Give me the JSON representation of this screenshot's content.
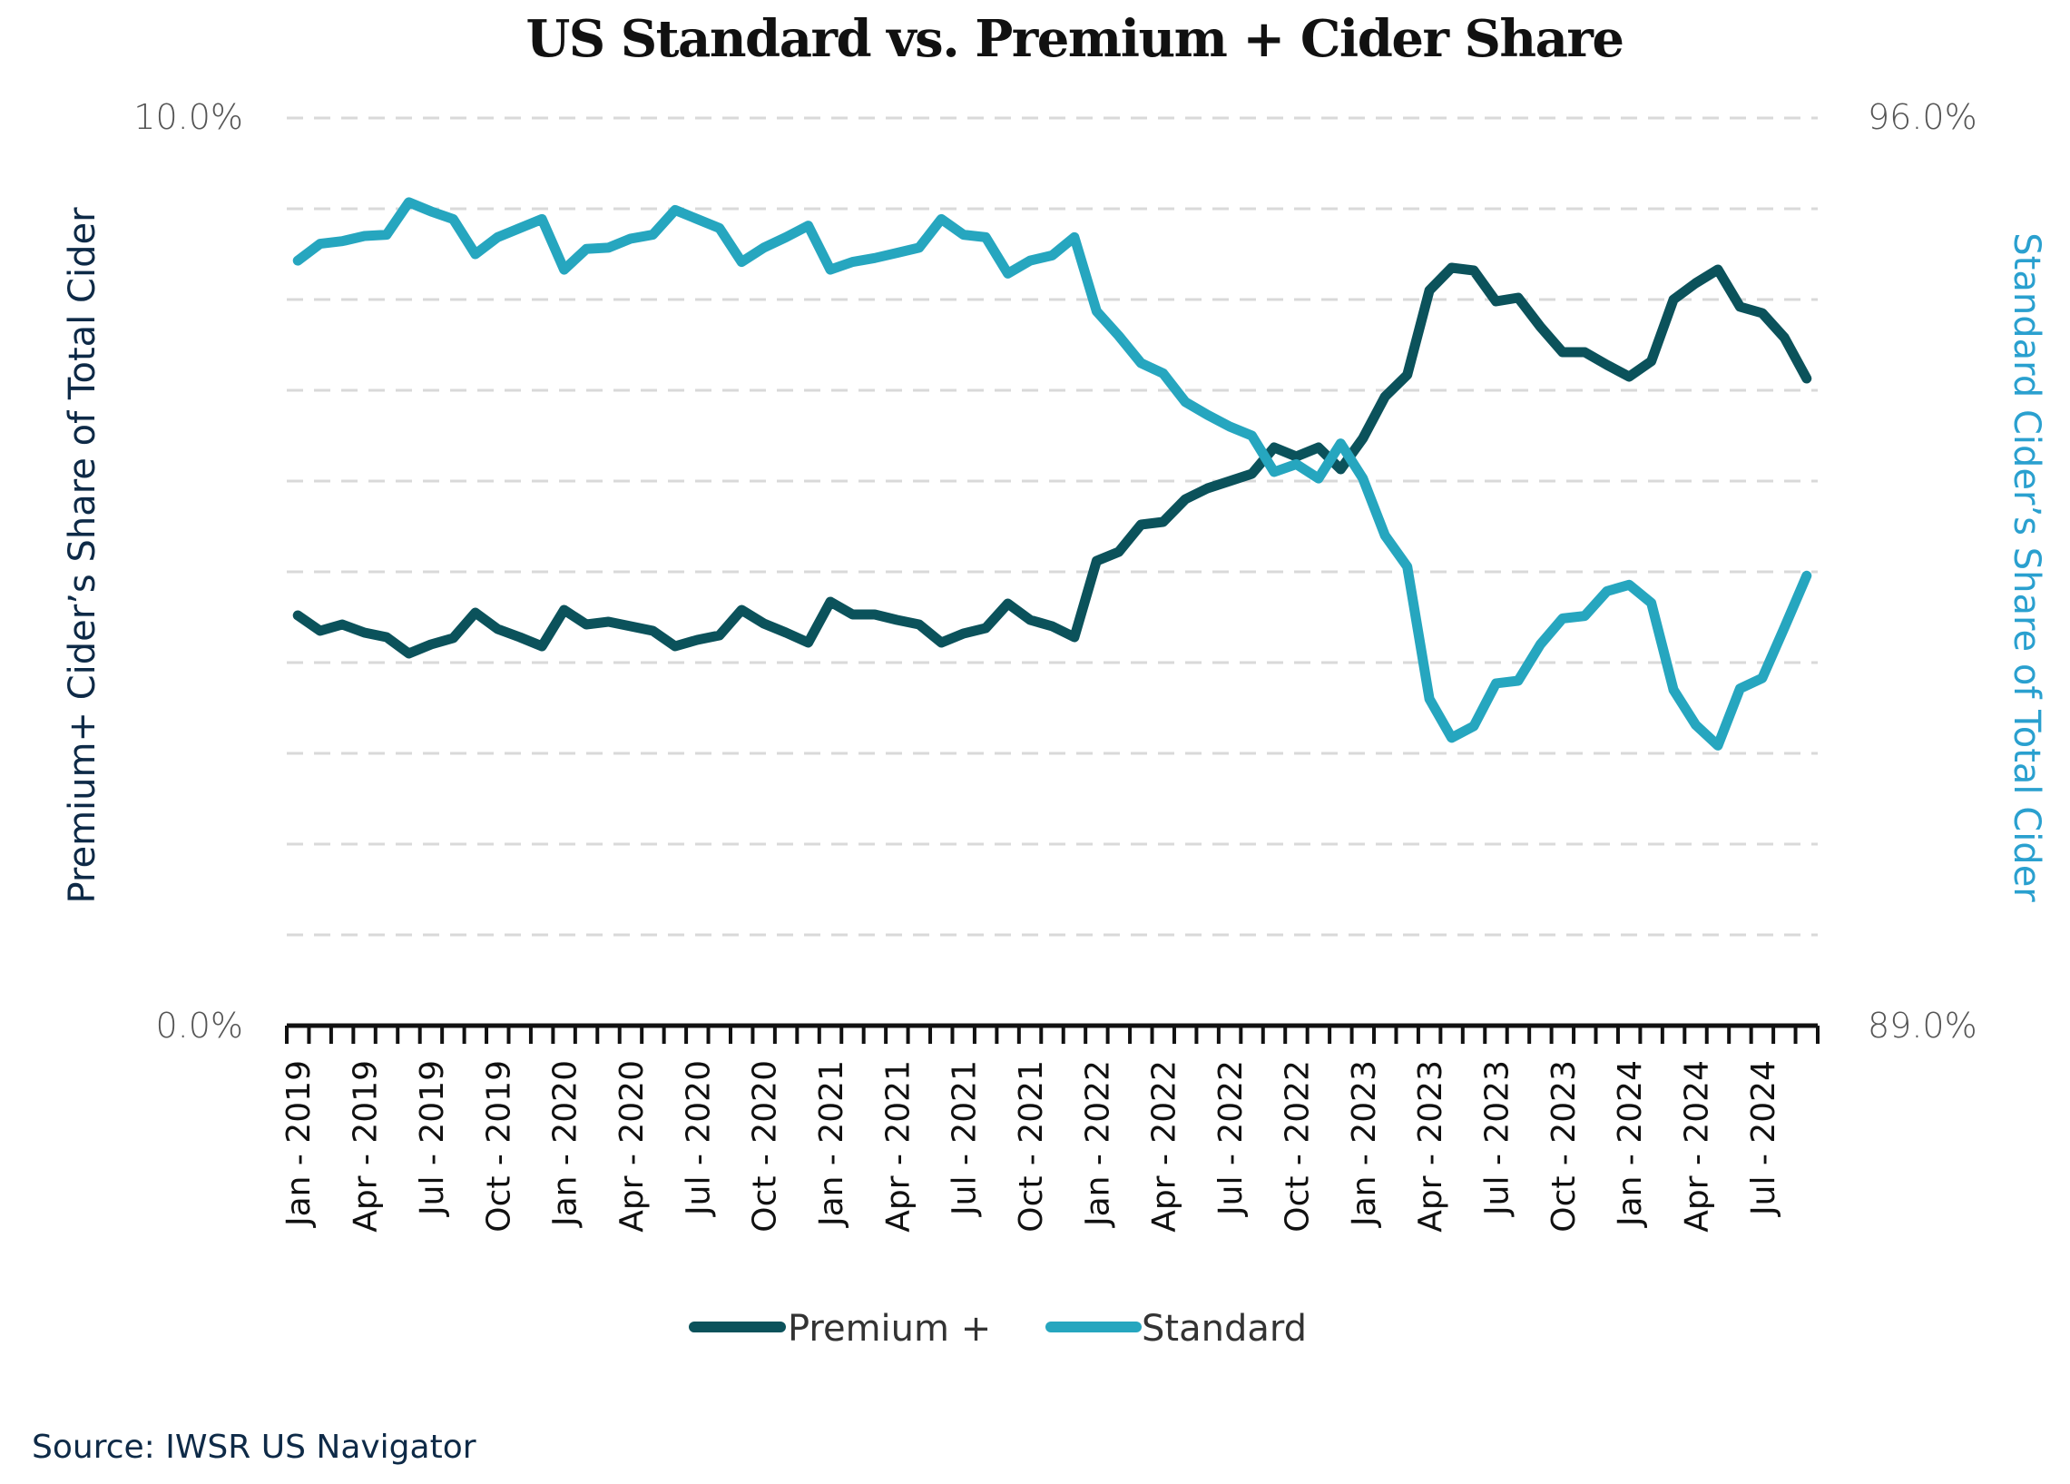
{
  "chart_data": {
    "type": "line",
    "title": "US Standard vs. Premium + Cider Share",
    "xlabel": "",
    "ylabel_left": "Premium+ Cider’s Share of Total Cider",
    "ylabel_right": "Standard Cider’s Share of Total Cider",
    "ylim_left": [
      0,
      10
    ],
    "ylim_right": [
      89,
      96
    ],
    "y_ticks_left": [
      "10.0%",
      "0.0%"
    ],
    "y_ticks_right": [
      "96.0%",
      "89.0%"
    ],
    "gridlines": 10,
    "grid": true,
    "legend_position": "bottom",
    "x": [
      "Jan - 2019",
      "Feb - 2019",
      "Mar - 2019",
      "Apr - 2019",
      "May - 2019",
      "Jun - 2019",
      "Jul - 2019",
      "Aug - 2019",
      "Sep - 2019",
      "Oct - 2019",
      "Nov - 2019",
      "Dec - 2019",
      "Jan - 2020",
      "Feb - 2020",
      "Mar - 2020",
      "Apr - 2020",
      "May - 2020",
      "Jun - 2020",
      "Jul - 2020",
      "Aug - 2020",
      "Sep - 2020",
      "Oct - 2020",
      "Nov - 2020",
      "Dec - 2020",
      "Jan - 2021",
      "Feb - 2021",
      "Mar - 2021",
      "Apr - 2021",
      "May - 2021",
      "Jun - 2021",
      "Jul - 2021",
      "Aug - 2021",
      "Sep - 2021",
      "Oct - 2021",
      "Nov - 2021",
      "Dec - 2021",
      "Jan - 2022",
      "Feb - 2022",
      "Mar - 2022",
      "Apr - 2022",
      "May - 2022",
      "Jun - 2022",
      "Jul - 2022",
      "Aug - 2022",
      "Sep - 2022",
      "Oct - 2022",
      "Nov - 2022",
      "Dec - 2022",
      "Jan - 2023",
      "Feb - 2023",
      "Mar - 2023",
      "Apr - 2023",
      "May - 2023",
      "Jun - 2023",
      "Jul - 2023",
      "Aug - 2023",
      "Sep - 2023",
      "Oct - 2023",
      "Nov - 2023",
      "Dec - 2023",
      "Jan - 2024",
      "Feb - 2024",
      "Mar - 2024",
      "Apr - 2024",
      "May - 2024",
      "Jun - 2024",
      "Jul - 2024",
      "Aug - 2024",
      "Sep - 2024"
    ],
    "x_tick_labels": [
      "Jan - 2019",
      "Apr - 2019",
      "Jul - 2019",
      "Oct - 2019",
      "Jan - 2020",
      "Apr - 2020",
      "Jul - 2020",
      "Oct - 2020",
      "Jan - 2021",
      "Apr - 2021",
      "Jul - 2021",
      "Oct - 2021",
      "Jan - 2022",
      "Apr - 2022",
      "Jul - 2022",
      "Oct - 2022",
      "Jan - 2023",
      "Apr - 2023",
      "Jul - 2023",
      "Oct - 2023",
      "Jan - 2024",
      "Apr - 2024",
      "Jul - 2024"
    ],
    "series": [
      {
        "name": "Premium +",
        "axis": "left",
        "color": "#0b525b",
        "values": [
          4.52,
          4.35,
          4.42,
          4.33,
          4.28,
          4.1,
          4.2,
          4.27,
          4.55,
          4.37,
          4.28,
          4.18,
          4.58,
          4.42,
          4.45,
          4.4,
          4.35,
          4.18,
          4.25,
          4.3,
          4.58,
          4.43,
          4.33,
          4.22,
          4.67,
          4.53,
          4.53,
          4.47,
          4.42,
          4.22,
          4.32,
          4.38,
          4.65,
          4.47,
          4.4,
          4.28,
          5.12,
          5.22,
          5.52,
          5.55,
          5.8,
          5.92,
          6.0,
          6.08,
          6.37,
          6.27,
          6.37,
          6.13,
          6.47,
          6.93,
          7.17,
          8.1,
          8.35,
          8.32,
          7.98,
          8.02,
          7.7,
          7.42,
          7.42,
          7.28,
          7.15,
          7.32,
          8.0,
          8.18,
          8.33,
          7.92,
          7.85,
          7.58,
          7.13
        ]
      },
      {
        "name": "Standard",
        "axis": "right",
        "color": "#26a6bf",
        "values": [
          94.9,
          95.03,
          95.05,
          95.09,
          95.1,
          95.35,
          95.28,
          95.22,
          94.95,
          95.08,
          95.15,
          95.22,
          94.83,
          94.99,
          95.0,
          95.07,
          95.1,
          95.29,
          95.22,
          95.15,
          94.89,
          95.0,
          95.08,
          95.17,
          94.83,
          94.89,
          94.92,
          94.96,
          95.0,
          95.22,
          95.1,
          95.08,
          94.8,
          94.9,
          94.94,
          95.08,
          94.51,
          94.32,
          94.11,
          94.03,
          93.81,
          93.71,
          93.62,
          93.55,
          93.27,
          93.33,
          93.22,
          93.49,
          93.22,
          92.78,
          92.54,
          91.52,
          91.22,
          91.31,
          91.64,
          91.66,
          91.94,
          92.14,
          92.16,
          92.35,
          92.4,
          92.26,
          91.59,
          91.32,
          91.16,
          91.6,
          91.68,
          92.07,
          92.47
        ]
      }
    ]
  },
  "footer": {
    "source": "Source: IWSR US Navigator"
  }
}
